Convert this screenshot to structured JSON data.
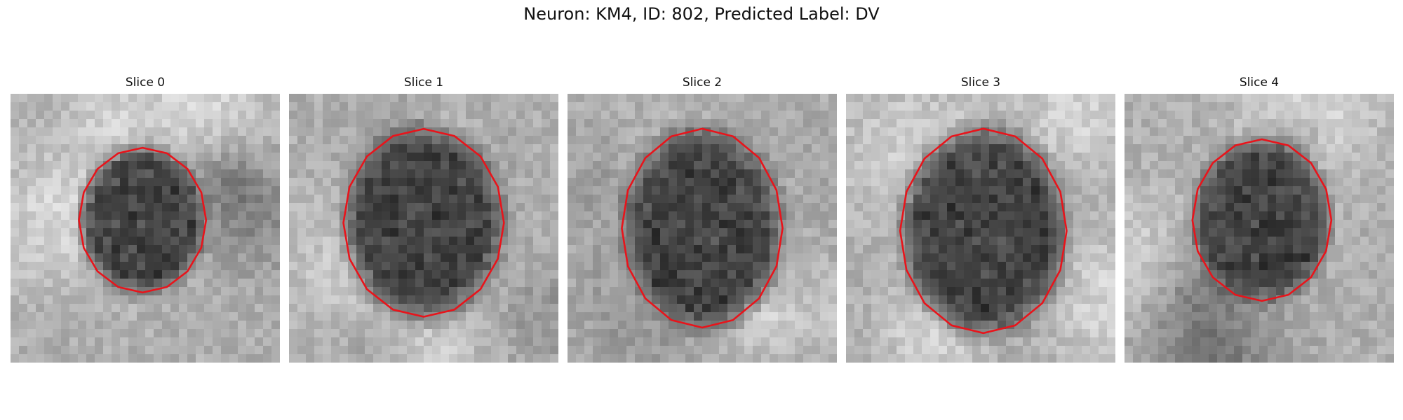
{
  "figure": {
    "title": "Neuron: KM4, ID: 802, Predicted Label: DV"
  },
  "panels": [
    {
      "title": "Slice 0",
      "contour_color": "#e8141b",
      "center": [
        0.49,
        0.47
      ],
      "radius": [
        0.23,
        0.27
      ]
    },
    {
      "title": "Slice 1",
      "contour_color": "#e8141b",
      "center": [
        0.5,
        0.48
      ],
      "radius": [
        0.29,
        0.35
      ]
    },
    {
      "title": "Slice 2",
      "contour_color": "#e8141b",
      "center": [
        0.5,
        0.5
      ],
      "radius": [
        0.29,
        0.37
      ]
    },
    {
      "title": "Slice 3",
      "contour_color": "#e8141b",
      "center": [
        0.51,
        0.51
      ],
      "radius": [
        0.3,
        0.38
      ]
    },
    {
      "title": "Slice 4",
      "contour_color": "#e8141b",
      "center": [
        0.51,
        0.47
      ],
      "radius": [
        0.25,
        0.3
      ]
    }
  ]
}
